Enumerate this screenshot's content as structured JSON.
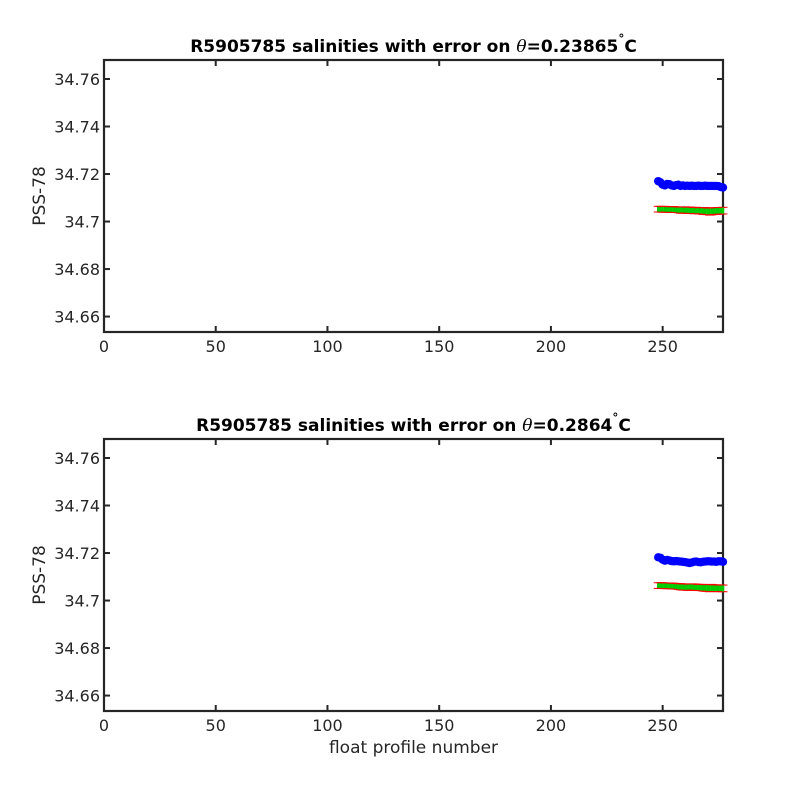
{
  "chart_data": [
    {
      "type": "scatter",
      "title": {
        "prefix": "R5905785 salinities with error on ",
        "theta": "θ",
        "value": "=0.23865",
        "degree": "°",
        "unit": "C"
      },
      "xlabel": "",
      "ylabel": "PSS-78",
      "xlim": [
        0,
        277
      ],
      "ylim": [
        34.6535,
        34.768
      ],
      "xticks": [
        0,
        50,
        100,
        150,
        200,
        250
      ],
      "yticks": [
        34.66,
        34.68,
        34.7,
        34.72,
        34.74,
        34.76
      ],
      "ytick_labels": [
        "34.66",
        "34.68",
        "34.7",
        "34.72",
        "34.74",
        "34.76"
      ],
      "grid": false,
      "series": [
        {
          "marker": "filled-circle",
          "color": "#0000ff",
          "x": [
            248,
            249,
            250,
            251,
            252,
            253,
            254,
            255,
            256,
            257,
            258,
            259,
            260,
            261,
            262,
            263,
            264,
            265,
            266,
            267,
            268,
            269,
            270,
            271,
            272,
            273,
            274,
            275,
            276,
            277
          ],
          "y": [
            34.717,
            34.7165,
            34.7155,
            34.7152,
            34.7158,
            34.7157,
            34.7152,
            34.715,
            34.7153,
            34.7155,
            34.715,
            34.7152,
            34.715,
            34.7151,
            34.715,
            34.7151,
            34.715,
            34.715,
            34.7151,
            34.715,
            34.715,
            34.7151,
            34.715,
            34.715,
            34.715,
            34.715,
            34.715,
            34.7149,
            34.7145,
            34.7143
          ]
        },
        {
          "marker": "errorbar",
          "color": "#00cc00",
          "errcolor": "#ff0000",
          "x": [
            248,
            249,
            250,
            251,
            252,
            253,
            254,
            255,
            256,
            257,
            258,
            259,
            260,
            261,
            262,
            263,
            264,
            265,
            266,
            267,
            268,
            269,
            270,
            271,
            272,
            273,
            274,
            275,
            276,
            277
          ],
          "y": [
            34.7052,
            34.7052,
            34.7051,
            34.7052,
            34.7051,
            34.7051,
            34.705,
            34.7051,
            34.705,
            34.7049,
            34.7048,
            34.7048,
            34.7049,
            34.7047,
            34.7048,
            34.7047,
            34.7046,
            34.7047,
            34.7045,
            34.7046,
            34.7044,
            34.7045,
            34.7043,
            34.7042,
            34.7043,
            34.7044,
            34.7044,
            34.7045,
            34.7045,
            34.7046
          ],
          "err": [
            0.0012,
            0.0012,
            0.0012,
            0.0012,
            0.0012,
            0.0012,
            0.0012,
            0.0012,
            0.0012,
            0.0012,
            0.0013,
            0.0013,
            0.0013,
            0.0013,
            0.0013,
            0.0013,
            0.0013,
            0.0013,
            0.0013,
            0.0013,
            0.0014,
            0.0014,
            0.0014,
            0.0015,
            0.0015,
            0.0014,
            0.0014,
            0.0014,
            0.0014,
            0.0014
          ]
        }
      ]
    },
    {
      "type": "scatter",
      "title": {
        "prefix": "R5905785 salinities with error on ",
        "theta": "θ",
        "value": "=0.2864",
        "degree": "°",
        "unit": "C"
      },
      "xlabel": "float profile number",
      "ylabel": "PSS-78",
      "xlim": [
        0,
        277
      ],
      "ylim": [
        34.6535,
        34.768
      ],
      "xticks": [
        0,
        50,
        100,
        150,
        200,
        250
      ],
      "yticks": [
        34.66,
        34.68,
        34.7,
        34.72,
        34.74,
        34.76
      ],
      "ytick_labels": [
        "34.66",
        "34.68",
        "34.7",
        "34.72",
        "34.74",
        "34.76"
      ],
      "grid": false,
      "series": [
        {
          "marker": "filled-circle",
          "color": "#0000ff",
          "x": [
            248,
            249,
            250,
            251,
            252,
            253,
            254,
            255,
            256,
            257,
            258,
            259,
            260,
            261,
            262,
            263,
            264,
            265,
            266,
            267,
            268,
            269,
            270,
            271,
            272,
            273,
            274,
            275,
            276,
            277
          ],
          "y": [
            34.7182,
            34.718,
            34.7172,
            34.7168,
            34.7171,
            34.7169,
            34.7166,
            34.7165,
            34.7166,
            34.7165,
            34.7164,
            34.7163,
            34.7162,
            34.716,
            34.7158,
            34.716,
            34.7163,
            34.7164,
            34.7162,
            34.7161,
            34.7163,
            34.7164,
            34.7165,
            34.7165,
            34.7164,
            34.7164,
            34.7163,
            34.7165,
            34.7165,
            34.7163
          ]
        },
        {
          "marker": "errorbar",
          "color": "#00cc00",
          "errcolor": "#ff0000",
          "x": [
            248,
            249,
            250,
            251,
            252,
            253,
            254,
            255,
            256,
            257,
            258,
            259,
            260,
            261,
            262,
            263,
            264,
            265,
            266,
            267,
            268,
            269,
            270,
            271,
            272,
            273,
            274,
            275,
            276,
            277
          ],
          "y": [
            34.7063,
            34.7063,
            34.7063,
            34.7062,
            34.7062,
            34.7062,
            34.7061,
            34.7061,
            34.706,
            34.7059,
            34.7058,
            34.7057,
            34.7057,
            34.7056,
            34.7056,
            34.7057,
            34.7057,
            34.7056,
            34.7055,
            34.7055,
            34.7054,
            34.7053,
            34.7053,
            34.7052,
            34.7053,
            34.7052,
            34.7052,
            34.7051,
            34.7052,
            34.7051
          ],
          "err": [
            0.0012,
            0.0012,
            0.0012,
            0.0012,
            0.0012,
            0.0012,
            0.0012,
            0.0012,
            0.0012,
            0.0012,
            0.0013,
            0.0013,
            0.0013,
            0.0013,
            0.0013,
            0.0013,
            0.0013,
            0.0013,
            0.0013,
            0.0013,
            0.0014,
            0.0014,
            0.0014,
            0.0015,
            0.0015,
            0.0014,
            0.0014,
            0.0014,
            0.0014,
            0.0014
          ]
        }
      ]
    }
  ]
}
